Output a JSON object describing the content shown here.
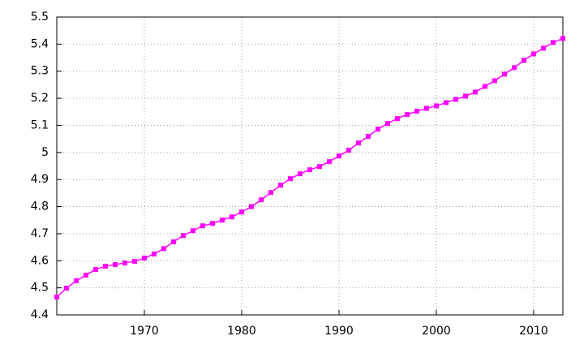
{
  "chart_data": {
    "type": "line",
    "x": [
      1961,
      1962,
      1963,
      1964,
      1965,
      1966,
      1967,
      1968,
      1969,
      1970,
      1971,
      1972,
      1973,
      1974,
      1975,
      1976,
      1977,
      1978,
      1979,
      1980,
      1981,
      1982,
      1983,
      1984,
      1985,
      1986,
      1987,
      1988,
      1989,
      1990,
      1991,
      1992,
      1993,
      1994,
      1995,
      1996,
      1997,
      1998,
      1999,
      2000,
      2001,
      2002,
      2003,
      2004,
      2005,
      2006,
      2007,
      2008,
      2009,
      2010,
      2011,
      2012,
      2013
    ],
    "series": [
      {
        "color": "#ff00ff",
        "values": [
          4.466,
          4.499,
          4.526,
          4.547,
          4.568,
          4.58,
          4.586,
          4.592,
          4.598,
          4.61,
          4.625,
          4.645,
          4.67,
          4.693,
          4.711,
          4.729,
          4.738,
          4.75,
          4.762,
          4.78,
          4.8,
          4.825,
          4.852,
          4.879,
          4.903,
          4.921,
          4.936,
          4.948,
          4.966,
          4.987,
          5.008,
          5.035,
          5.059,
          5.086,
          5.107,
          5.125,
          5.14,
          5.152,
          5.163,
          5.172,
          5.184,
          5.196,
          5.208,
          5.223,
          5.244,
          5.265,
          5.289,
          5.313,
          5.34,
          5.364,
          5.385,
          5.406,
          5.421
        ]
      }
    ],
    "xlim": [
      1961,
      2013
    ],
    "xticks": [
      1970,
      1980,
      1990,
      2000,
      2010
    ],
    "ylim": [
      4.4,
      5.5
    ],
    "yticks": [
      4.4,
      4.5,
      4.6,
      4.7,
      4.8,
      4.9,
      5,
      5.1,
      5.2,
      5.3,
      5.4,
      5.5
    ],
    "grid": true
  }
}
